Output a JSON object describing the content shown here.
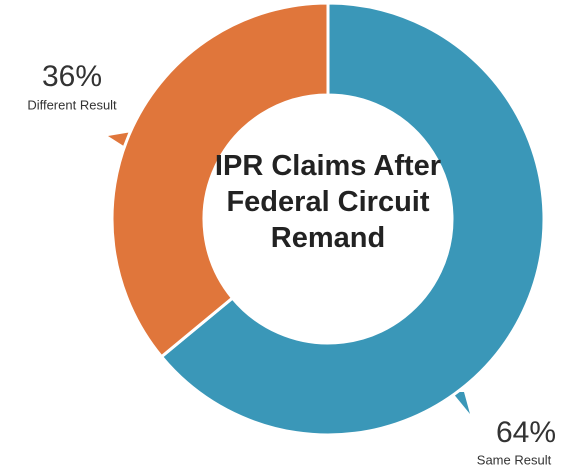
{
  "chart_data": {
    "type": "donut",
    "title": "IPR Claims After Federal Circuit Remand",
    "categories": [
      "Same Result",
      "Different Result"
    ],
    "values": [
      64,
      36
    ],
    "value_labels": [
      "64%",
      "36%"
    ],
    "colors": [
      "#3a97b8",
      "#e0763b"
    ]
  }
}
